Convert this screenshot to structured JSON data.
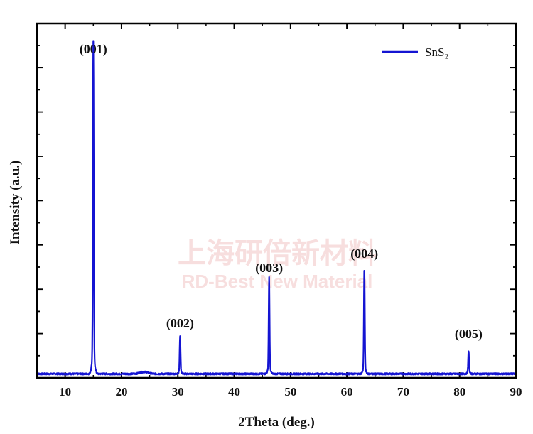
{
  "chart_data": {
    "type": "line",
    "xlabel": "2Theta (deg.)",
    "ylabel": "Intensity (a.u.)",
    "xlim": [
      5,
      90
    ],
    "ylim": [
      0,
      100
    ],
    "x_ticks": [
      10,
      20,
      30,
      40,
      50,
      60,
      70,
      80,
      90
    ],
    "grid": false,
    "legend_position": "top-right",
    "series": [
      {
        "name": "SnS₂",
        "color": "#1414d2",
        "peaks": [
          {
            "x": 15.0,
            "y": 100,
            "label": "(001)"
          },
          {
            "x": 30.4,
            "y": 11.5,
            "label": "(002)"
          },
          {
            "x": 46.2,
            "y": 29,
            "label": "(003)"
          },
          {
            "x": 63.1,
            "y": 32,
            "label": "(004)"
          },
          {
            "x": 81.6,
            "y": 7,
            "label": "(005)"
          }
        ]
      }
    ]
  },
  "watermark": {
    "cn": "上海研倍新材料",
    "en": "RD-Best New Material"
  }
}
